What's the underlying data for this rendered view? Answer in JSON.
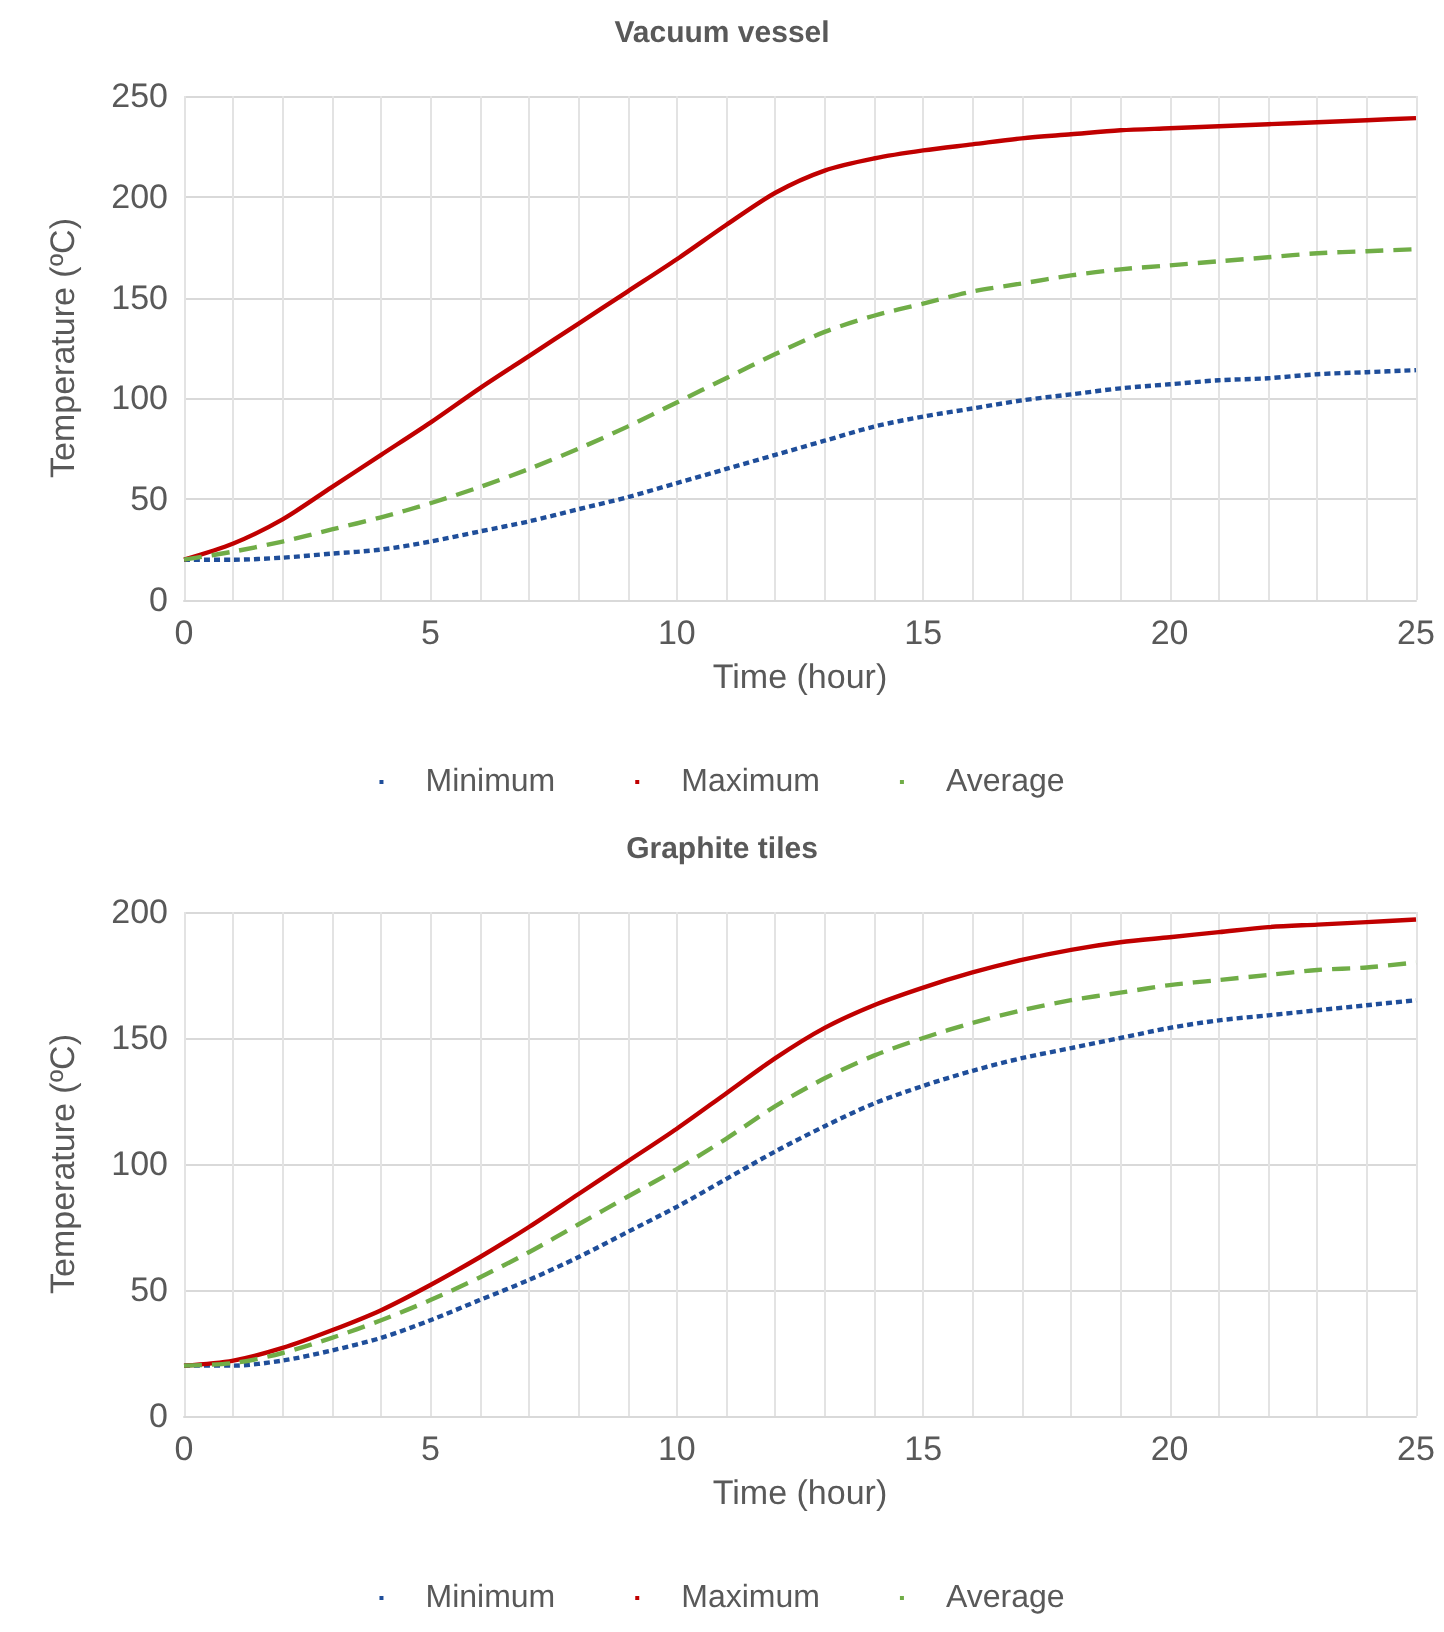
{
  "chart_data": [
    {
      "type": "line",
      "title": "Vacuum vessel",
      "xlabel": "Time (hour)",
      "ylabel": "Temperature (ºC)",
      "x": [
        0,
        1,
        2,
        3,
        4,
        5,
        6,
        7,
        8,
        9,
        10,
        11,
        12,
        13,
        14,
        15,
        16,
        17,
        18,
        19,
        20,
        21,
        22,
        23,
        24,
        25
      ],
      "series": [
        {
          "name": "Minimum",
          "color": "#1f4e9a",
          "line_style": "dotted",
          "values": [
            20,
            20,
            21,
            23,
            25,
            29,
            34,
            39,
            45,
            51,
            58,
            65,
            72,
            79,
            86,
            91,
            95,
            99,
            102,
            105,
            107,
            109,
            110,
            112,
            113,
            114
          ]
        },
        {
          "name": "Maximum",
          "color": "#c00000",
          "line_style": "solid",
          "values": [
            20,
            28,
            40,
            56,
            72,
            88,
            105,
            121,
            137,
            153,
            169,
            186,
            202,
            213,
            219,
            223,
            226,
            229,
            231,
            233,
            234,
            235,
            236,
            237,
            238,
            239
          ]
        },
        {
          "name": "Average",
          "color": "#70ad47",
          "line_style": "dashed",
          "values": [
            20,
            24,
            29,
            35,
            41,
            48,
            56,
            65,
            75,
            86,
            98,
            110,
            122,
            133,
            141,
            147,
            153,
            157,
            161,
            164,
            166,
            168,
            170,
            172,
            173,
            174
          ]
        }
      ],
      "xlim": [
        0,
        25
      ],
      "xticks": [
        0,
        {
          "value": 1,
          "label": null
        },
        {
          "value": 2,
          "label": null
        },
        {
          "value": 3,
          "label": null
        },
        {
          "value": 4,
          "label": null
        },
        5,
        {
          "value": 6,
          "label": null
        },
        {
          "value": 7,
          "label": null
        },
        {
          "value": 8,
          "label": null
        },
        {
          "value": 9,
          "label": null
        },
        10,
        {
          "value": 11,
          "label": null
        },
        {
          "value": 12,
          "label": null
        },
        {
          "value": 13,
          "label": null
        },
        {
          "value": 14,
          "label": null
        },
        15,
        {
          "value": 16,
          "label": null
        },
        {
          "value": 17,
          "label": null
        },
        {
          "value": 18,
          "label": null
        },
        {
          "value": 19,
          "label": null
        },
        20,
        {
          "value": 21,
          "label": null
        },
        {
          "value": 22,
          "label": null
        },
        {
          "value": 23,
          "label": null
        },
        {
          "value": 24,
          "label": null
        },
        25
      ],
      "ylim": [
        0,
        250
      ],
      "yticks": [
        0,
        50,
        100,
        150,
        200,
        250
      ],
      "grid": true,
      "legend": "bottom",
      "marker": "none"
    },
    {
      "type": "line",
      "title": "Graphite tiles",
      "xlabel": "Time (hour)",
      "ylabel": "Temperature (ºC)",
      "x": [
        0,
        1,
        2,
        3,
        4,
        5,
        6,
        7,
        8,
        9,
        10,
        11,
        12,
        13,
        14,
        15,
        16,
        17,
        18,
        19,
        20,
        21,
        22,
        23,
        24,
        25
      ],
      "series": [
        {
          "name": "Minimum",
          "color": "#1f4e9a",
          "line_style": "dotted",
          "values": [
            20,
            20,
            22,
            26,
            31,
            38,
            46,
            54,
            63,
            73,
            83,
            94,
            105,
            115,
            124,
            131,
            137,
            142,
            146,
            150,
            154,
            157,
            159,
            161,
            163,
            165
          ]
        },
        {
          "name": "Maximum",
          "color": "#c00000",
          "line_style": "solid",
          "values": [
            20,
            22,
            27,
            34,
            42,
            52,
            63,
            75,
            88,
            101,
            114,
            128,
            142,
            154,
            163,
            170,
            176,
            181,
            185,
            188,
            190,
            192,
            194,
            195,
            196,
            197
          ]
        },
        {
          "name": "Average",
          "color": "#70ad47",
          "line_style": "dashed",
          "values": [
            20,
            21,
            25,
            31,
            38,
            46,
            55,
            65,
            76,
            87,
            98,
            110,
            123,
            134,
            143,
            150,
            156,
            161,
            165,
            168,
            171,
            173,
            175,
            177,
            178,
            180
          ]
        }
      ],
      "xlim": [
        0,
        25
      ],
      "xticks": [
        0,
        {
          "value": 1,
          "label": null
        },
        {
          "value": 2,
          "label": null
        },
        {
          "value": 3,
          "label": null
        },
        {
          "value": 4,
          "label": null
        },
        5,
        {
          "value": 6,
          "label": null
        },
        {
          "value": 7,
          "label": null
        },
        {
          "value": 8,
          "label": null
        },
        {
          "value": 9,
          "label": null
        },
        10,
        {
          "value": 11,
          "label": null
        },
        {
          "value": 12,
          "label": null
        },
        {
          "value": 13,
          "label": null
        },
        {
          "value": 14,
          "label": null
        },
        15,
        {
          "value": 16,
          "label": null
        },
        {
          "value": 17,
          "label": null
        },
        {
          "value": 18,
          "label": null
        },
        {
          "value": 19,
          "label": null
        },
        20,
        {
          "value": 21,
          "label": null
        },
        {
          "value": 22,
          "label": null
        },
        {
          "value": 23,
          "label": null
        },
        {
          "value": 24,
          "label": null
        },
        25
      ],
      "ylim": [
        0,
        200
      ],
      "yticks": [
        0,
        50,
        100,
        150,
        200
      ],
      "grid": true,
      "legend": "bottom",
      "marker": "none"
    }
  ]
}
